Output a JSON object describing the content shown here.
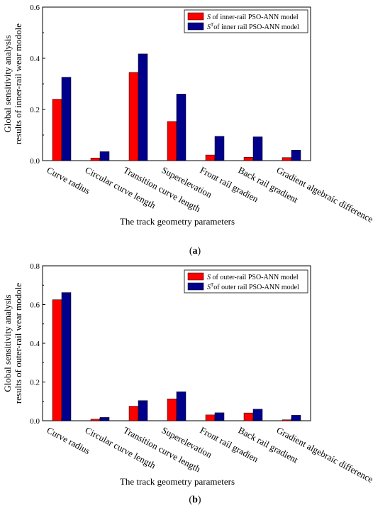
{
  "colors": {
    "s": "#ff0000",
    "st": "#00008b",
    "axis": "#000000"
  },
  "chart_data": [
    {
      "type": "bar",
      "categories": [
        "Curve radius",
        "Circular curve length",
        "Transition curve length",
        "Superelevation",
        "Front rail gradien",
        "Back rail gradient",
        "Gradient algebraic difference"
      ],
      "series": [
        {
          "name_main": "S",
          "name_rest": " of inner-rail PSO-ANN model",
          "values": [
            0.24,
            0.01,
            0.345,
            0.153,
            0.022,
            0.013,
            0.012
          ]
        },
        {
          "name_main": "S",
          "name_sup": "T",
          "name_rest": "of inner rail PSO-ANN model",
          "values": [
            0.326,
            0.035,
            0.417,
            0.26,
            0.095,
            0.093,
            0.041
          ]
        }
      ],
      "ylabel_line1": "Global sensitivity analysis",
      "ylabel_line2": "results of inner-rail wear modole",
      "xlabel": "The track geometry parameters",
      "yticks": [
        "0.0",
        "0.2",
        "0.4",
        "0.6"
      ],
      "ylim": [
        0,
        0.6
      ],
      "caption_open": "(",
      "caption_letter": "a",
      "caption_close": ")",
      "legend": "top-right"
    },
    {
      "type": "bar",
      "categories": [
        "Curve radius",
        "Circular curve length",
        "Transition curve length",
        "Superelevation",
        "Front rail gradien",
        "Back rail gradient",
        "Gradient algebraic difference"
      ],
      "series": [
        {
          "name_main": "S",
          "name_rest": " of outer-rail PSO-ANN model",
          "values": [
            0.625,
            0.008,
            0.075,
            0.113,
            0.03,
            0.04,
            0.005
          ]
        },
        {
          "name_main": "S",
          "name_sup": "T",
          "name_rest": "of outer rail PSO-ANN model",
          "values": [
            0.662,
            0.017,
            0.104,
            0.15,
            0.041,
            0.06,
            0.028
          ]
        }
      ],
      "ylabel_line1": "Global sensitivity analysis",
      "ylabel_line2": "results of outer-rail wear modole",
      "xlabel": "The track geometry parameters",
      "yticks": [
        "0.0",
        "0.2",
        "0.4",
        "0.6",
        "0.8"
      ],
      "ylim": [
        0,
        0.8
      ],
      "caption_open": "(",
      "caption_letter": "b",
      "caption_close": ")",
      "legend": "top-right"
    }
  ]
}
